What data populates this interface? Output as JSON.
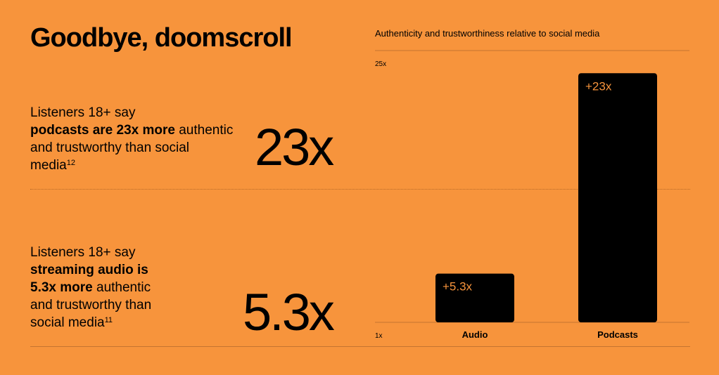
{
  "headline": "Goodbye, doomscroll",
  "stats": [
    {
      "lead": "Listeners 18+ say",
      "bold": "podcasts are 23x more",
      "rest": " authentic and trustworthy than social media",
      "footnote": "12",
      "big_number": "23x"
    },
    {
      "lead": "Listeners 18+ say",
      "bold": "streaming audio is 5.3x more",
      "rest": " authentic and trustworthy than social media",
      "footnote": "11",
      "big_number": "5.3x"
    }
  ],
  "colors": {
    "background": "#F7943C",
    "bar": "#000000",
    "bar_label": "#F7943C"
  },
  "chart_data": {
    "type": "bar",
    "title": "Authenticity and trustworthiness relative to social media",
    "categories": [
      "Audio",
      "Podcasts"
    ],
    "values": [
      5.3,
      23
    ],
    "data_labels": [
      "+5.3x",
      "+23x"
    ],
    "ylim": [
      1,
      25
    ],
    "ytick_labels": [
      "1x",
      "25x"
    ],
    "grid": true,
    "xlabel": "",
    "ylabel": ""
  }
}
